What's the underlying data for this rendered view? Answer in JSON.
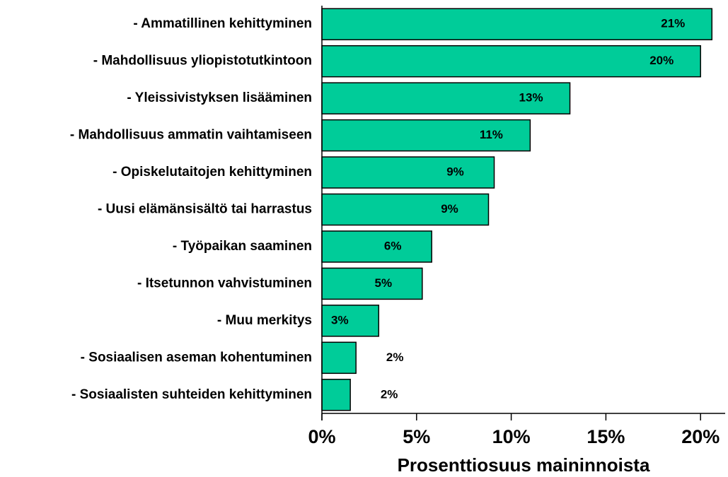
{
  "chart_data": {
    "type": "barh",
    "categories": [
      "- Ammatillinen kehittyminen",
      "- Mahdollisuus yliopistotutkintoon",
      "- Yleissivistyksen lisääminen",
      "- Mahdollisuus ammatin vaihtamiseen",
      "- Opiskelutaitojen kehittyminen",
      "- Uusi elämänsisältö tai harrastus",
      "- Työpaikan saaminen",
      "- Itsetunnon vahvistuminen",
      "- Muu merkitys",
      "- Sosiaalisen aseman kohentuminen",
      "- Sosiaalisten suhteiden kehittyminen"
    ],
    "values": [
      20.6,
      20.0,
      13.1,
      11.0,
      9.1,
      8.8,
      5.8,
      5.3,
      3.0,
      1.8,
      1.5
    ],
    "value_labels": [
      "21%",
      "20%",
      "13%",
      "11%",
      "9%",
      "9%",
      "6%",
      "5%",
      "3%",
      "2%",
      "2%"
    ],
    "color": "#00cc99",
    "x_label": "Prosenttiosuus maininnoista",
    "xlim": [
      0,
      21.3
    ],
    "xticks": [
      {
        "value": 0,
        "label": "0%"
      },
      {
        "value": 5,
        "label": "5%"
      },
      {
        "value": 10,
        "label": "10%"
      },
      {
        "value": 15,
        "label": "15%"
      },
      {
        "value": 20,
        "label": "20%"
      }
    ]
  }
}
